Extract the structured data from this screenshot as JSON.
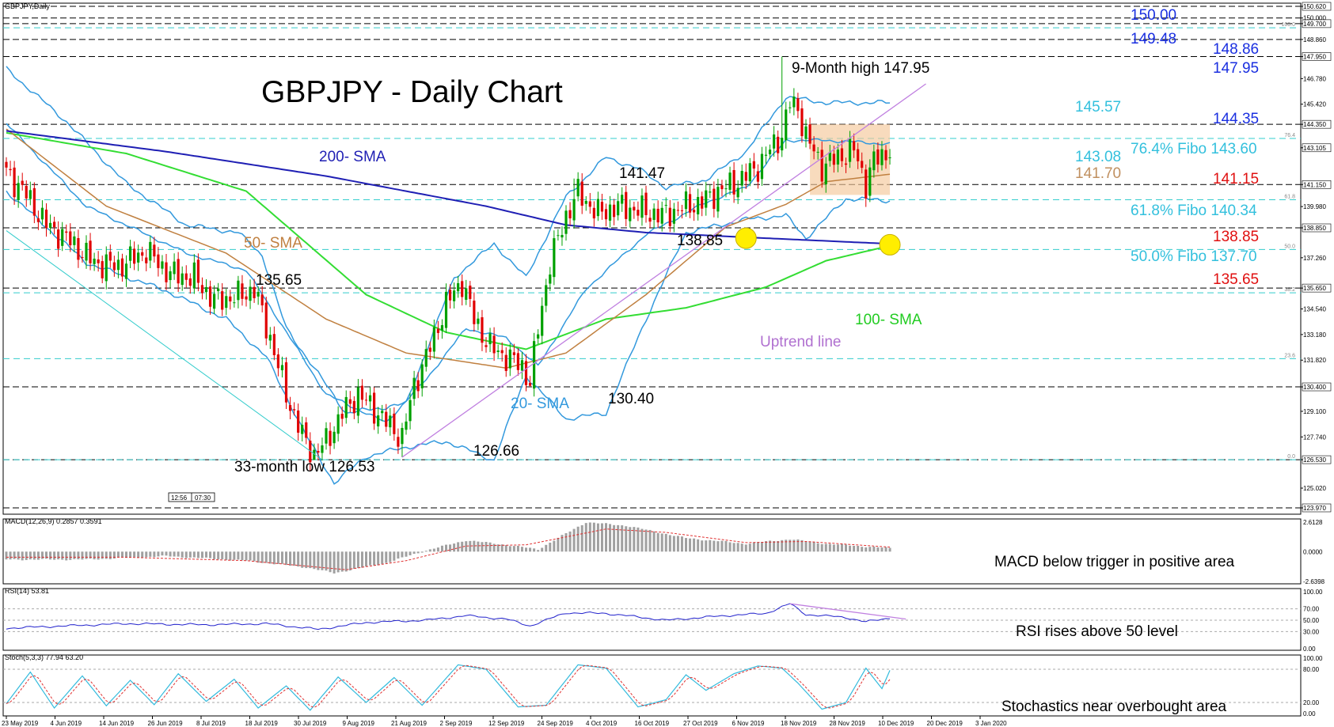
{
  "chart_data": {
    "type": "candlestick",
    "symbol_caption": "GBPJPY,Daily",
    "title": "GBPJPY - Daily Chart",
    "colors": {
      "bull": "#00a000",
      "bear": "#e00000",
      "sma200": "#1f1fb4",
      "sma100": "#33dd33",
      "sma50": "#c08040",
      "sma20": "#3399dd",
      "uptrend": "#c080e0",
      "fibo": "#33cccc",
      "level_black": "#000000",
      "label_blue": "#1a2fe0",
      "label_red": "#e01010",
      "label_cyan": "#33c0dd",
      "label_tan": "#c09060",
      "consolidation_box": "#f5c89a",
      "highlight": "#ffee00",
      "rsi": "#2222cc",
      "stoch_main": "#33bbdd",
      "stoch_signal": "#e03030",
      "macd_hist": "#a0a0a0",
      "macd_signal": "#e03030"
    },
    "main_pane": {
      "ylim": [
        123.97,
        150.62
      ],
      "price_ticks": [
        "150.620",
        "150.000",
        "149.700",
        "148.860",
        "147.950",
        "146.780",
        "145.420",
        "144.350",
        "143.105",
        "141.150",
        "139.980",
        "138.850",
        "137.260",
        "135.650",
        "134.540",
        "133.180",
        "131.820",
        "130.400",
        "129.100",
        "127.740",
        "126.530",
        "125.020",
        "123.970"
      ],
      "horizontal_levels_black": [
        150.62,
        150.0,
        149.7,
        148.86,
        147.95,
        144.35,
        141.15,
        138.85,
        135.65,
        130.4,
        126.53,
        123.97
      ],
      "fibo_levels": [
        {
          "pct": "100.0",
          "price": 149.48
        },
        {
          "pct": "76.4",
          "price": 143.6
        },
        {
          "pct": "61.8",
          "price": 140.34
        },
        {
          "pct": "50.0",
          "price": 137.7
        },
        {
          "pct": "38.2",
          "price": 135.4
        },
        {
          "pct": "23.6",
          "price": 131.9
        },
        {
          "pct": "0.0",
          "price": 126.53
        }
      ],
      "label_texts": {
        "l150": "150.00",
        "l14948": "149.48",
        "l14886": "148.86",
        "l14795": "147.95",
        "l14557": "145.57",
        "l14435": "144.35",
        "l14308": "143.08",
        "l14170": "141.70",
        "l14115": "141.15",
        "l13885": "138.85",
        "l13565": "135.65",
        "fibo764": "76.4% Fibo 143.60",
        "fibo618": "61.8% Fibo 140.34",
        "fibo50": "50.0% Fibo 137.70"
      },
      "annotations": {
        "high_9m": "9-Month high 147.95",
        "low_33m": "33-month low 126.53",
        "a14147": "141.47",
        "a13885": "138.85",
        "a13565": "135.65",
        "a13040": "130.40",
        "a12666": "126.66",
        "sma200": "200- SMA",
        "sma50": "50- SMA",
        "sma100": "100- SMA",
        "sma20": "20- SMA",
        "uptrend": "Uptrend line"
      },
      "time_box": [
        "12:56",
        "07:30"
      ]
    },
    "date_labels": [
      "23 May 2019",
      "4 Jun 2019",
      "14 Jun 2019",
      "26 Jun 2019",
      "8 Jul 2019",
      "18 Jul 2019",
      "30 Jul 2019",
      "9 Aug 2019",
      "21 Aug 2019",
      "2 Sep 2019",
      "12 Sep 2019",
      "24 Sep 2019",
      "4 Oct 2019",
      "16 Oct 2019",
      "27 Oct 2019",
      "6 Nov 2019",
      "18 Nov 2019",
      "28 Nov 2019",
      "10 Dec 2019",
      "20 Dec 2019",
      "3 Jan 2020"
    ],
    "close_anchors": [
      [
        0,
        141.8
      ],
      [
        5,
        140.6
      ],
      [
        10,
        139.0
      ],
      [
        15,
        138.3
      ],
      [
        22,
        137.0
      ],
      [
        28,
        136.8
      ],
      [
        35,
        137.6
      ],
      [
        41,
        136.4
      ],
      [
        47,
        136.2
      ],
      [
        52,
        135.0
      ],
      [
        58,
        135.2
      ],
      [
        62,
        135.6
      ],
      [
        66,
        133.0
      ],
      [
        70,
        130.0
      ],
      [
        74,
        127.8
      ],
      [
        77,
        126.8
      ],
      [
        80,
        127.5
      ],
      [
        84,
        129.0
      ],
      [
        88,
        130.0
      ],
      [
        92,
        129.2
      ],
      [
        96,
        128.3
      ],
      [
        99,
        127.7
      ],
      [
        102,
        130.5
      ],
      [
        106,
        132.5
      ],
      [
        110,
        134.8
      ],
      [
        114,
        136.0
      ],
      [
        117,
        134.0
      ],
      [
        121,
        132.5
      ],
      [
        125,
        132.0
      ],
      [
        129,
        131.5
      ],
      [
        131,
        130.6
      ],
      [
        133,
        133.5
      ],
      [
        136,
        137.0
      ],
      [
        140,
        139.5
      ],
      [
        143,
        140.7
      ],
      [
        148,
        139.6
      ],
      [
        153,
        140.0
      ],
      [
        158,
        139.8
      ],
      [
        164,
        139.5
      ],
      [
        170,
        140.0
      ],
      [
        174,
        140.2
      ],
      [
        178,
        140.8
      ],
      [
        183,
        141.3
      ],
      [
        188,
        142.1
      ],
      [
        191,
        143.0
      ],
      [
        194,
        143.8
      ],
      [
        196,
        145.5
      ],
      [
        198,
        145.2
      ],
      [
        200,
        143.7
      ],
      [
        204,
        142.1
      ],
      [
        208,
        142.6
      ],
      [
        212,
        143.0
      ],
      [
        215,
        141.2
      ],
      [
        217,
        142.4
      ],
      [
        221,
        143.0
      ]
    ],
    "wick_overrides": [
      [
        77,
        126.53,
        "low"
      ],
      [
        99,
        126.66,
        "low"
      ],
      [
        131,
        130.4,
        "low"
      ],
      [
        142,
        141.47,
        "high"
      ],
      [
        194,
        147.95,
        "high"
      ]
    ],
    "sma200_anchors": [
      [
        0,
        144.0
      ],
      [
        40,
        142.9
      ],
      [
        80,
        141.6
      ],
      [
        120,
        140.0
      ],
      [
        140,
        139.0
      ],
      [
        160,
        138.6
      ],
      [
        190,
        138.3
      ],
      [
        221,
        138.0
      ]
    ],
    "sma100_anchors": [
      [
        0,
        143.9
      ],
      [
        30,
        142.8
      ],
      [
        60,
        140.8
      ],
      [
        90,
        135.3
      ],
      [
        110,
        133.3
      ],
      [
        130,
        132.4
      ],
      [
        150,
        134.0
      ],
      [
        170,
        134.6
      ],
      [
        190,
        135.7
      ],
      [
        205,
        137.1
      ],
      [
        221,
        137.9
      ]
    ],
    "sma50_anchors": [
      [
        0,
        144.1
      ],
      [
        25,
        140.0
      ],
      [
        55,
        137.5
      ],
      [
        80,
        134.0
      ],
      [
        100,
        132.2
      ],
      [
        125,
        131.4
      ],
      [
        140,
        132.2
      ],
      [
        160,
        135.3
      ],
      [
        180,
        138.9
      ],
      [
        195,
        140.1
      ],
      [
        205,
        141.3
      ],
      [
        221,
        141.7
      ]
    ],
    "bb_upper_anchors": [
      [
        0,
        147.3
      ],
      [
        15,
        144.5
      ],
      [
        30,
        141.2
      ],
      [
        45,
        139.0
      ],
      [
        58,
        138.6
      ],
      [
        64,
        137.4
      ],
      [
        70,
        133.5
      ],
      [
        85,
        129.0
      ],
      [
        100,
        129.5
      ],
      [
        112,
        136.2
      ],
      [
        122,
        138.0
      ],
      [
        130,
        136.2
      ],
      [
        140,
        140.5
      ],
      [
        150,
        142.6
      ],
      [
        158,
        142.0
      ],
      [
        165,
        141.0
      ],
      [
        175,
        141.4
      ],
      [
        185,
        142.9
      ],
      [
        195,
        145.8
      ],
      [
        205,
        145.5
      ],
      [
        221,
        145.5
      ]
    ],
    "bb_mid_anchors": [
      [
        0,
        144.4
      ],
      [
        20,
        140.0
      ],
      [
        45,
        137.5
      ],
      [
        60,
        136.6
      ],
      [
        68,
        134.0
      ],
      [
        80,
        130.0
      ],
      [
        95,
        128.5
      ],
      [
        105,
        130.8
      ],
      [
        115,
        133.5
      ],
      [
        125,
        133.0
      ],
      [
        133,
        131.5
      ],
      [
        145,
        135.6
      ],
      [
        160,
        138.5
      ],
      [
        175,
        140.2
      ],
      [
        185,
        141.0
      ],
      [
        195,
        143.5
      ],
      [
        205,
        143.5
      ],
      [
        221,
        143.3
      ]
    ],
    "bb_lower_anchors": [
      [
        0,
        140.8
      ],
      [
        20,
        137.0
      ],
      [
        40,
        135.5
      ],
      [
        55,
        134.0
      ],
      [
        65,
        132.0
      ],
      [
        75,
        127.8
      ],
      [
        82,
        125.3
      ],
      [
        90,
        126.7
      ],
      [
        100,
        127.2
      ],
      [
        110,
        127.5
      ],
      [
        122,
        126.5
      ],
      [
        130,
        131.0
      ],
      [
        140,
        128.7
      ],
      [
        150,
        129.0
      ],
      [
        160,
        134.0
      ],
      [
        170,
        138.6
      ],
      [
        185,
        139.3
      ],
      [
        195,
        139.5
      ],
      [
        200,
        138.3
      ],
      [
        210,
        140.4
      ],
      [
        221,
        140.3
      ]
    ],
    "uptrend_line": [
      [
        99,
        126.66
      ],
      [
        230,
        146.5
      ]
    ],
    "downtrend_line": [
      [
        0,
        138.7
      ],
      [
        79,
        126.53
      ]
    ],
    "consolidation_box": {
      "x0": 201,
      "x1": 221,
      "y0": 140.6,
      "y1": 144.35
    },
    "highlight_points": [
      [
        185,
        138.3
      ],
      [
        221,
        137.95
      ]
    ],
    "macd": {
      "label": "MACD(12,26,9) 0.2857 0.3591",
      "ylim": [
        -2.6398,
        2.6128
      ],
      "ticks": [
        "2.6128",
        "0.0000",
        "-2.6398"
      ],
      "hist_anchors": [
        [
          0,
          -0.7
        ],
        [
          20,
          -0.7
        ],
        [
          40,
          -0.4
        ],
        [
          60,
          -0.8
        ],
        [
          75,
          -1.4
        ],
        [
          82,
          -1.9
        ],
        [
          95,
          -1.0
        ],
        [
          105,
          0.1
        ],
        [
          115,
          1.0
        ],
        [
          125,
          0.6
        ],
        [
          133,
          0.2
        ],
        [
          145,
          2.6
        ],
        [
          155,
          2.3
        ],
        [
          170,
          1.2
        ],
        [
          185,
          0.7
        ],
        [
          196,
          1.1
        ],
        [
          205,
          0.7
        ],
        [
          221,
          0.3
        ]
      ],
      "signal_anchors": [
        [
          0,
          -0.5
        ],
        [
          30,
          -0.5
        ],
        [
          60,
          -0.8
        ],
        [
          85,
          -1.6
        ],
        [
          100,
          -0.8
        ],
        [
          115,
          0.5
        ],
        [
          130,
          0.6
        ],
        [
          150,
          2.0
        ],
        [
          165,
          1.7
        ],
        [
          185,
          0.8
        ],
        [
          200,
          0.9
        ],
        [
          221,
          0.4
        ]
      ],
      "note": "MACD below trigger in positive area"
    },
    "rsi": {
      "label": "RSI(14) 53.81",
      "ylim": [
        0,
        100
      ],
      "ticks": [
        "100.00",
        "70.00",
        "50.00",
        "30.00",
        "0.00"
      ],
      "anchors": [
        [
          0,
          36
        ],
        [
          15,
          40
        ],
        [
          30,
          44
        ],
        [
          50,
          42
        ],
        [
          65,
          44
        ],
        [
          78,
          34
        ],
        [
          90,
          46
        ],
        [
          105,
          50
        ],
        [
          115,
          58
        ],
        [
          125,
          52
        ],
        [
          131,
          40
        ],
        [
          140,
          63
        ],
        [
          150,
          62
        ],
        [
          165,
          50
        ],
        [
          180,
          58
        ],
        [
          190,
          62
        ],
        [
          196,
          79
        ],
        [
          200,
          60
        ],
        [
          210,
          55
        ],
        [
          215,
          47
        ],
        [
          221,
          54
        ]
      ],
      "divergence": [
        [
          196,
          79
        ],
        [
          225,
          52
        ]
      ],
      "note": "RSI rises above 50 level"
    },
    "stoch": {
      "label": "Stoch(5,3,3) 77.94 63.20",
      "ylim": [
        0,
        100
      ],
      "ticks": [
        "100.00",
        "80.00",
        "20.00",
        "0.00"
      ],
      "k_anchors": [
        [
          0,
          18
        ],
        [
          6,
          75
        ],
        [
          12,
          10
        ],
        [
          19,
          68
        ],
        [
          25,
          14
        ],
        [
          31,
          60
        ],
        [
          37,
          16
        ],
        [
          43,
          72
        ],
        [
          50,
          22
        ],
        [
          57,
          62
        ],
        [
          63,
          10
        ],
        [
          70,
          50
        ],
        [
          76,
          6
        ],
        [
          83,
          66
        ],
        [
          90,
          20
        ],
        [
          97,
          65
        ],
        [
          104,
          15
        ],
        [
          113,
          88
        ],
        [
          120,
          80
        ],
        [
          128,
          12
        ],
        [
          135,
          15
        ],
        [
          143,
          88
        ],
        [
          150,
          82
        ],
        [
          158,
          12
        ],
        [
          165,
          25
        ],
        [
          170,
          70
        ],
        [
          175,
          42
        ],
        [
          182,
          72
        ],
        [
          188,
          86
        ],
        [
          194,
          82
        ],
        [
          198,
          55
        ],
        [
          204,
          8
        ],
        [
          210,
          20
        ],
        [
          215,
          82
        ],
        [
          219,
          45
        ],
        [
          221,
          78
        ]
      ],
      "note": "Stochastics near overbought area"
    }
  }
}
